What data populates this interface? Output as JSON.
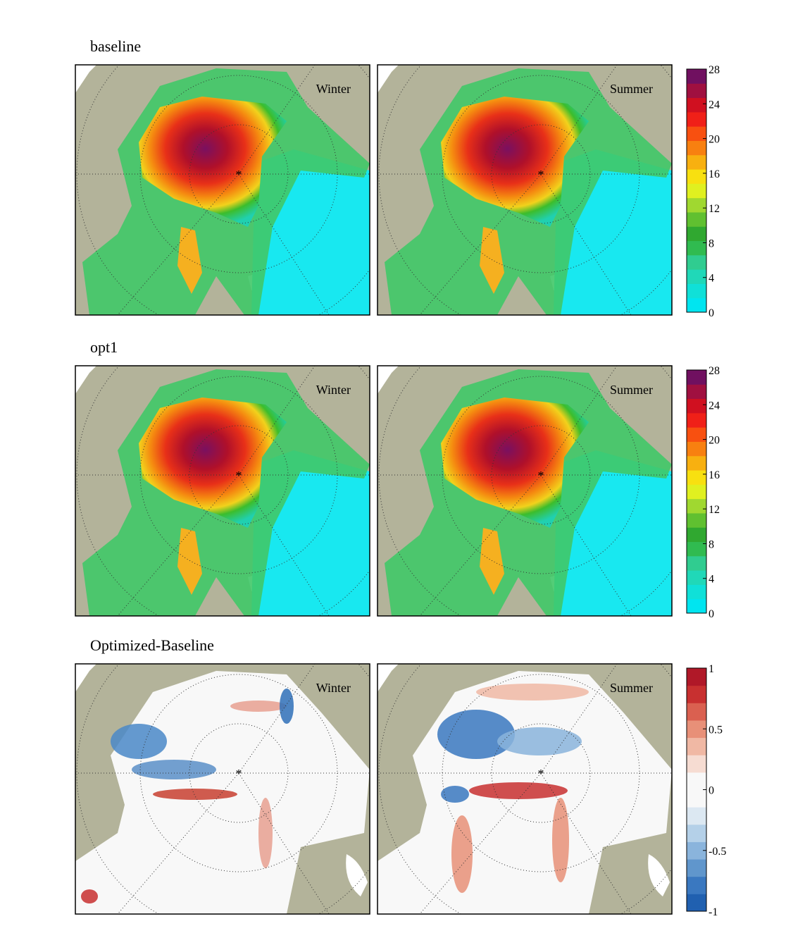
{
  "rows": [
    {
      "title": "baseline",
      "panels": [
        {
          "label": "Winter"
        },
        {
          "label": "Summer"
        }
      ],
      "colorbar": {
        "lim": [
          0,
          28
        ],
        "ticks": [
          0,
          4,
          8,
          12,
          16,
          20,
          24,
          28
        ]
      }
    },
    {
      "title": "opt1",
      "panels": [
        {
          "label": "Winter"
        },
        {
          "label": "Summer"
        }
      ],
      "colorbar": {
        "lim": [
          0,
          28
        ],
        "ticks": [
          0,
          4,
          8,
          12,
          16,
          20,
          24,
          28
        ]
      }
    },
    {
      "title": "Optimized-Baseline",
      "panels": [
        {
          "label": "Winter"
        },
        {
          "label": "Summer"
        }
      ],
      "colorbar": {
        "lim": [
          -1,
          1
        ],
        "ticks": [
          -1,
          -0.5,
          0,
          0.5,
          1
        ]
      }
    }
  ]
}
